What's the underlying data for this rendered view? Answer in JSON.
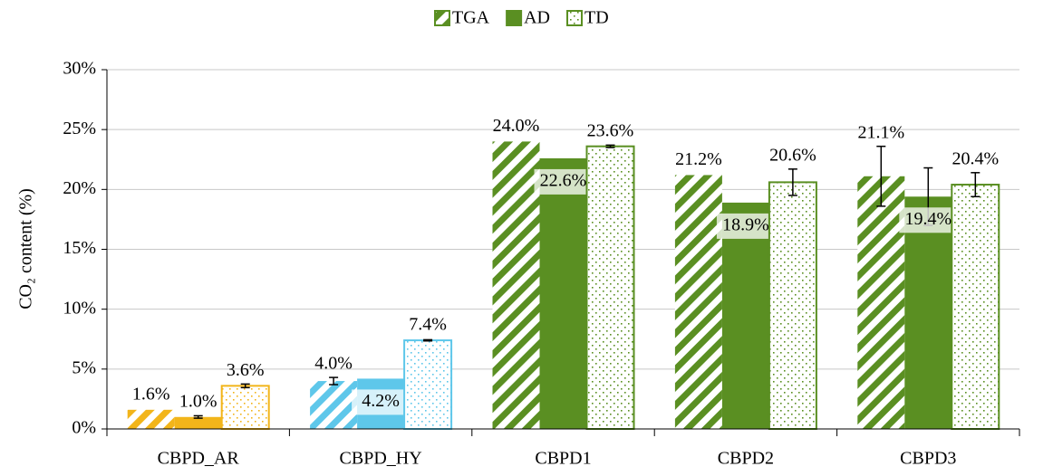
{
  "chart_data": {
    "type": "bar",
    "ylabel": "CO₂ content (%)",
    "categories": [
      "CBPD_AR",
      "CBPD_HY",
      "CBPD1",
      "CBPD2",
      "CBPD3"
    ],
    "category_colors": [
      "#f2b51a",
      "#5ec7ea",
      "#5a8f22",
      "#5a8f22",
      "#5a8f22"
    ],
    "series": [
      {
        "name": "TGA",
        "color": "#5a8f22",
        "pattern": "stripes",
        "values": [
          1.6,
          4.0,
          24.0,
          21.2,
          21.1
        ],
        "value_labels": [
          "1.6%",
          "4.0%",
          "24.0%",
          "21.2%",
          "21.1%"
        ],
        "errors": [
          null,
          0.3,
          null,
          null,
          2.5
        ]
      },
      {
        "name": "AD",
        "color": "#5a8f22",
        "pattern": "solid",
        "values": [
          1.0,
          4.2,
          22.6,
          18.9,
          19.4
        ],
        "value_labels": [
          "1.0%",
          "4.2%",
          "22.6%",
          "18.9%",
          "19.4%"
        ],
        "errors": [
          0.1,
          null,
          null,
          null,
          2.4
        ]
      },
      {
        "name": "TD",
        "color": "#5a8f22",
        "pattern": "dots",
        "values": [
          3.6,
          7.4,
          23.6,
          20.6,
          20.4
        ],
        "value_labels": [
          "3.6%",
          "7.4%",
          "23.6%",
          "20.6%",
          "20.4%"
        ],
        "errors": [
          0.15,
          0.05,
          0.1,
          1.1,
          1.0
        ]
      }
    ],
    "ylim": [
      0,
      30
    ],
    "yticks": [
      {
        "value": 0,
        "label": "0%"
      },
      {
        "value": 5,
        "label": "5%"
      },
      {
        "value": 10,
        "label": "10%"
      },
      {
        "value": 15,
        "label": "15%"
      },
      {
        "value": 20,
        "label": "20%"
      },
      {
        "value": 25,
        "label": "25%"
      },
      {
        "value": 30,
        "label": "30%"
      }
    ],
    "grid": true,
    "legend": "top"
  }
}
